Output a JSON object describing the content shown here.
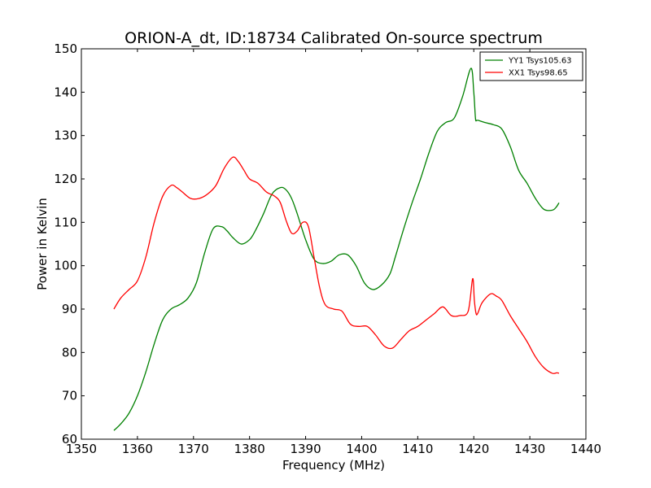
{
  "chart_data": {
    "type": "line",
    "title": "ORION-A_dt, ID:18734 Calibrated On-source spectrum",
    "xlabel": "Frequency (MHz)",
    "ylabel": "Power in Kelvin",
    "xlim": [
      1350,
      1440
    ],
    "ylim": [
      60,
      150
    ],
    "xticks": [
      1350,
      1360,
      1370,
      1380,
      1390,
      1400,
      1410,
      1420,
      1430,
      1440
    ],
    "yticks": [
      60,
      70,
      80,
      90,
      100,
      110,
      120,
      130,
      140,
      150
    ],
    "grid": false,
    "legend_position": "top-right",
    "series": [
      {
        "name": "YY1 Tsys105.63",
        "color": "#008000",
        "x": [
          1355.8,
          1357,
          1358.5,
          1360,
          1361.5,
          1363,
          1364.5,
          1366,
          1367.5,
          1369,
          1370.5,
          1372,
          1373.5,
          1375,
          1376,
          1377,
          1378.5,
          1380,
          1381,
          1382.5,
          1384,
          1385.5,
          1386.5,
          1387.5,
          1388.5,
          1390,
          1391.5,
          1393,
          1394.5,
          1396,
          1397.5,
          1399,
          1400.5,
          1402,
          1403.5,
          1405,
          1406,
          1407.5,
          1409,
          1410.5,
          1412,
          1413.5,
          1415,
          1416.5,
          1418,
          1419.5,
          1420,
          1420.3,
          1420.5,
          1420.8,
          1422,
          1423.5,
          1425,
          1426.5,
          1428,
          1429.5,
          1431,
          1432.5,
          1434,
          1434.7,
          1435.2
        ],
        "y": [
          62,
          63.5,
          66,
          70,
          75.5,
          82,
          87.5,
          90,
          91,
          92.5,
          96,
          103,
          108.5,
          109,
          108,
          106.5,
          105,
          106,
          108,
          112,
          116.5,
          118,
          117.5,
          115.5,
          112,
          106,
          101.5,
          100.5,
          101,
          102.5,
          102.5,
          100,
          96,
          94.5,
          95.5,
          98,
          102,
          108.5,
          114.5,
          120,
          126,
          131,
          133,
          134,
          139,
          145.5,
          140,
          134,
          133.5,
          133.5,
          133,
          132.5,
          131.5,
          127.5,
          122,
          119,
          115.5,
          113,
          112.8,
          113.5,
          114.5
        ]
      },
      {
        "name": "XX1 Tsys98.65",
        "color": "#ff0000",
        "x": [
          1355.8,
          1357,
          1358.5,
          1360,
          1361.5,
          1363,
          1364.5,
          1366,
          1367,
          1368,
          1369.5,
          1371,
          1372.5,
          1374,
          1375.5,
          1377,
          1378,
          1379,
          1380,
          1381.5,
          1383,
          1384.5,
          1385.5,
          1386.5,
          1387.5,
          1388.5,
          1389.5,
          1390.5,
          1391.5,
          1392.5,
          1393.5,
          1395,
          1396.5,
          1398,
          1399.5,
          1401,
          1402.5,
          1404,
          1405.5,
          1407,
          1408.5,
          1410,
          1411.5,
          1413,
          1414.5,
          1416,
          1417.5,
          1419,
          1419.8,
          1420.1,
          1420.4,
          1420.7,
          1421.5,
          1423,
          1424,
          1425,
          1426.5,
          1428,
          1429.5,
          1431,
          1432.5,
          1434,
          1434.8,
          1435.2
        ],
        "y": [
          90,
          92.5,
          94.5,
          96.5,
          102,
          110,
          116,
          118.5,
          118,
          117,
          115.5,
          115.5,
          116.5,
          118.5,
          122.5,
          125,
          124,
          122,
          120,
          119,
          117,
          116,
          114.5,
          110.5,
          107.5,
          108,
          110,
          109,
          102,
          95,
          91,
          90,
          89.5,
          86.5,
          86,
          86,
          84,
          81.5,
          81,
          83,
          85,
          86,
          87.5,
          89,
          90.5,
          88.5,
          88.5,
          89.5,
          97,
          92,
          89,
          89,
          91.5,
          93.5,
          93,
          92,
          88.5,
          85.5,
          82.5,
          79,
          76.5,
          75.2,
          75.3,
          75.2
        ]
      }
    ]
  }
}
